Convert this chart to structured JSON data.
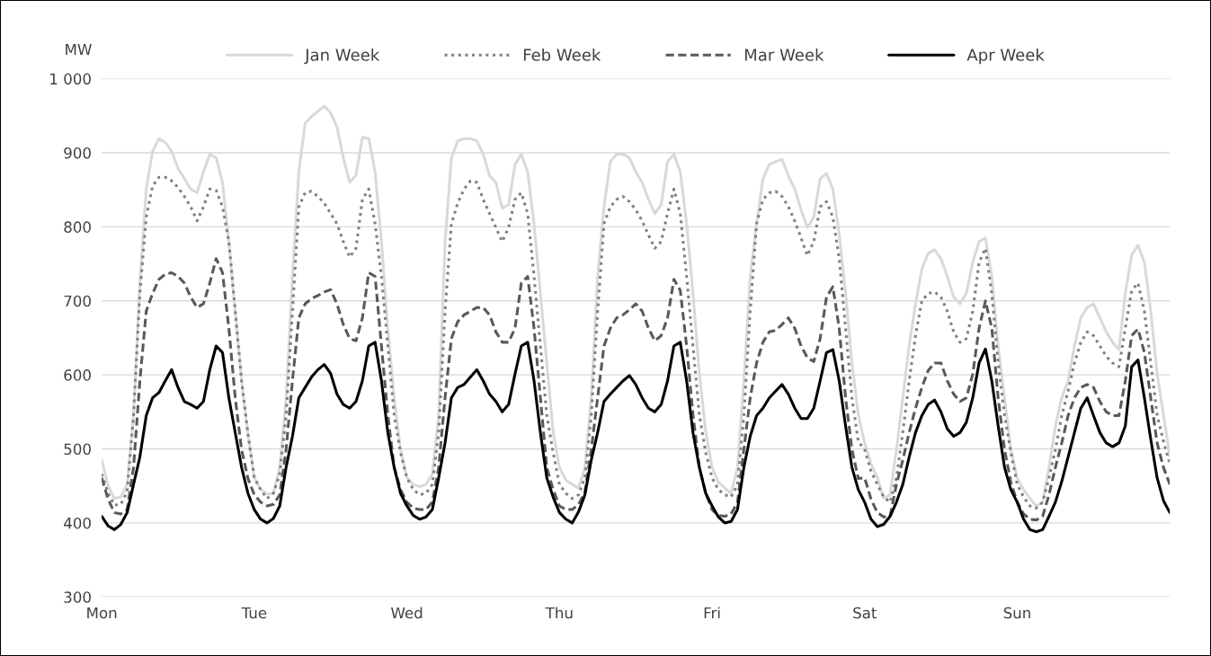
{
  "chart_data": {
    "type": "line",
    "ylabel": "MW",
    "categories": [
      "Mon",
      null,
      null,
      null,
      null,
      null,
      null,
      null,
      null,
      null,
      null,
      null,
      null,
      null,
      null,
      null,
      null,
      null,
      null,
      null,
      null,
      null,
      null,
      null,
      "Tue",
      null,
      null,
      null,
      null,
      null,
      null,
      null,
      null,
      null,
      null,
      null,
      null,
      null,
      null,
      null,
      null,
      null,
      null,
      null,
      null,
      null,
      null,
      null,
      "Wed",
      null,
      null,
      null,
      null,
      null,
      null,
      null,
      null,
      null,
      null,
      null,
      null,
      null,
      null,
      null,
      null,
      null,
      null,
      null,
      null,
      null,
      null,
      null,
      "Thu",
      null,
      null,
      null,
      null,
      null,
      null,
      null,
      null,
      null,
      null,
      null,
      null,
      null,
      null,
      null,
      null,
      null,
      null,
      null,
      null,
      null,
      null,
      null,
      "Fri",
      null,
      null,
      null,
      null,
      null,
      null,
      null,
      null,
      null,
      null,
      null,
      null,
      null,
      null,
      null,
      null,
      null,
      null,
      null,
      null,
      null,
      null,
      null,
      "Sat",
      null,
      null,
      null,
      null,
      null,
      null,
      null,
      null,
      null,
      null,
      null,
      null,
      null,
      null,
      null,
      null,
      null,
      null,
      null,
      null,
      null,
      null,
      null,
      "Sun",
      null,
      null,
      null,
      null,
      null,
      null,
      null,
      null,
      null,
      null,
      null,
      null,
      null,
      null,
      null,
      null,
      null,
      null,
      null,
      null,
      null,
      null,
      null,
      null
    ],
    "series": [
      {
        "name": "Jan Week",
        "color": "#d9d9d9",
        "line_style": "solid",
        "values": [
          485,
          450,
          433,
          435,
          452,
          545,
          724,
          851,
          902,
          919,
          914,
          902,
          879,
          865,
          851,
          846,
          874,
          898,
          893,
          860,
          780,
          686,
          592,
          520,
          461,
          445,
          439,
          440,
          475,
          568,
          733,
          874,
          940,
          949,
          956,
          963,
          954,
          935,
          893,
          860,
          870,
          921,
          919,
          874,
          780,
          663,
          569,
          499,
          461,
          452,
          449,
          452,
          466,
          545,
          780,
          893,
          916,
          919,
          919,
          916,
          898,
          869,
          860,
          825,
          830,
          884,
          898,
          874,
          804,
          710,
          616,
          523,
          475,
          458,
          452,
          447,
          475,
          569,
          733,
          827,
          888,
          898,
          898,
          893,
          874,
          860,
          837,
          818,
          830,
          888,
          898,
          874,
          804,
          710,
          602,
          523,
          475,
          455,
          447,
          440,
          475,
          592,
          733,
          804,
          865,
          884,
          888,
          891,
          869,
          851,
          823,
          799,
          813,
          865,
          872,
          851,
          790,
          710,
          616,
          546,
          508,
          480,
          461,
          433,
          438,
          499,
          569,
          639,
          696,
          743,
          764,
          769,
          757,
          733,
          705,
          696,
          710,
          752,
          780,
          785,
          733,
          639,
          569,
          499,
          461,
          445,
          433,
          423,
          428,
          475,
          531,
          569,
          592,
          639,
          677,
          691,
          696,
          677,
          658,
          644,
          634,
          710,
          762,
          775,
          752,
          686,
          602,
          546,
          490
        ]
      },
      {
        "name": "Feb Week",
        "color": "#808080",
        "line_style": "dotted",
        "values": [
          466,
          440,
          424,
          425,
          442,
          545,
          710,
          813,
          855,
          867,
          867,
          862,
          853,
          841,
          827,
          808,
          827,
          851,
          849,
          827,
          780,
          686,
          592,
          520,
          461,
          445,
          433,
          440,
          466,
          545,
          686,
          827,
          846,
          848,
          841,
          832,
          818,
          804,
          780,
          759,
          771,
          837,
          851,
          804,
          733,
          639,
          546,
          495,
          461,
          445,
          438,
          440,
          452,
          522,
          686,
          804,
          832,
          851,
          862,
          860,
          837,
          818,
          799,
          780,
          799,
          837,
          846,
          818,
          733,
          639,
          546,
          495,
          452,
          440,
          433,
          438,
          461,
          545,
          686,
          804,
          827,
          837,
          841,
          834,
          823,
          808,
          789,
          771,
          780,
          818,
          851,
          818,
          733,
          639,
          546,
          495,
          461,
          445,
          438,
          435,
          452,
          545,
          686,
          804,
          837,
          846,
          848,
          841,
          827,
          808,
          785,
          761,
          780,
          827,
          834,
          813,
          757,
          663,
          569,
          510,
          499,
          470,
          452,
          435,
          428,
          461,
          522,
          592,
          653,
          700,
          710,
          712,
          705,
          686,
          658,
          644,
          649,
          686,
          752,
          771,
          710,
          616,
          546,
          495,
          452,
          435,
          423,
          420,
          428,
          461,
          499,
          545,
          578,
          616,
          644,
          658,
          653,
          639,
          625,
          616,
          611,
          663,
          714,
          724,
          686,
          616,
          546,
          510,
          480
        ]
      },
      {
        "name": "Mar Week",
        "color": "#595959",
        "line_style": "dashed",
        "values": [
          461,
          432,
          414,
          412,
          418,
          475,
          592,
          686,
          710,
          729,
          736,
          738,
          733,
          724,
          705,
          691,
          696,
          724,
          757,
          738,
          663,
          569,
          499,
          460,
          438,
          428,
          423,
          425,
          438,
          499,
          592,
          677,
          696,
          703,
          707,
          712,
          715,
          696,
          668,
          649,
          646,
          677,
          738,
          733,
          639,
          546,
          475,
          445,
          428,
          420,
          418,
          418,
          428,
          475,
          569,
          649,
          672,
          681,
          686,
          691,
          691,
          681,
          658,
          644,
          644,
          663,
          724,
          733,
          663,
          569,
          475,
          445,
          423,
          418,
          418,
          425,
          442,
          499,
          569,
          639,
          663,
          677,
          681,
          688,
          696,
          686,
          663,
          646,
          653,
          677,
          729,
          714,
          639,
          546,
          475,
          440,
          418,
          410,
          409,
          412,
          428,
          499,
          569,
          616,
          644,
          658,
          660,
          668,
          677,
          663,
          639,
          623,
          618,
          649,
          705,
          719,
          663,
          569,
          499,
          460,
          461,
          432,
          414,
          408,
          409,
          452,
          485,
          522,
          555,
          583,
          606,
          616,
          616,
          592,
          574,
          564,
          569,
          601,
          663,
          700,
          663,
          569,
          499,
          455,
          428,
          412,
          405,
          404,
          409,
          438,
          475,
          508,
          545,
          569,
          583,
          587,
          583,
          564,
          550,
          545,
          545,
          592,
          653,
          662,
          630,
          569,
          508,
          475,
          452
        ]
      },
      {
        "name": "Apr Week",
        "color": "#000000",
        "line_style": "solid",
        "values": [
          409,
          396,
          391,
          398,
          414,
          452,
          489,
          545,
          569,
          576,
          592,
          607,
          583,
          564,
          560,
          555,
          564,
          607,
          639,
          630,
          569,
          522,
          475,
          440,
          418,
          405,
          400,
          406,
          423,
          475,
          517,
          569,
          583,
          597,
          607,
          614,
          602,
          574,
          560,
          555,
          564,
          592,
          639,
          644,
          592,
          522,
          475,
          440,
          423,
          410,
          405,
          408,
          418,
          461,
          508,
          569,
          583,
          587,
          597,
          607,
          592,
          574,
          564,
          550,
          560,
          601,
          639,
          644,
          592,
          522,
          461,
          435,
          414,
          405,
          400,
          415,
          438,
          485,
          522,
          564,
          574,
          583,
          592,
          599,
          587,
          569,
          555,
          550,
          560,
          592,
          639,
          644,
          592,
          522,
          475,
          440,
          423,
          408,
          400,
          402,
          418,
          475,
          517,
          545,
          555,
          569,
          578,
          587,
          574,
          555,
          541,
          541,
          555,
          592,
          630,
          634,
          592,
          531,
          475,
          445,
          428,
          405,
          395,
          398,
          409,
          428,
          452,
          489,
          522,
          545,
          560,
          566,
          550,
          527,
          517,
          522,
          536,
          569,
          616,
          635,
          592,
          531,
          475,
          445,
          428,
          405,
          391,
          388,
          391,
          409,
          428,
          456,
          489,
          522,
          555,
          569,
          545,
          522,
          508,
          503,
          508,
          531,
          611,
          620,
          569,
          513,
          461,
          430,
          414
        ]
      }
    ],
    "ylim": [
      300,
      1000
    ],
    "yticks": [
      300,
      400,
      500,
      600,
      700,
      800,
      900,
      {
        "value": 1000,
        "label": "1 000"
      }
    ],
    "grid": "y",
    "legend": "top",
    "marker": "none"
  }
}
